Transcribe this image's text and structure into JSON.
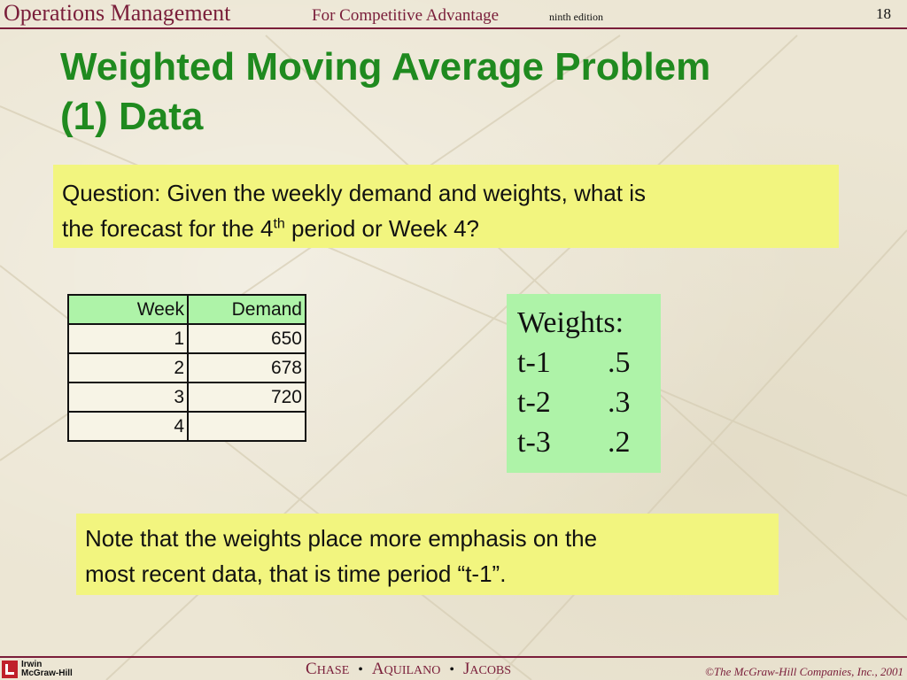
{
  "header": {
    "title": "Operations Management",
    "subtitle": "For Competitive Advantage",
    "edition": "ninth edition",
    "page_number": "18"
  },
  "slide": {
    "title_line1": "Weighted Moving Average Problem",
    "title_line2": "(1) Data"
  },
  "question": {
    "line1": "Question: Given the weekly demand and weights, what is",
    "line2_before": "the forecast for the 4",
    "line2_sup": "th",
    "line2_after": " period or Week 4?"
  },
  "demand_table": {
    "headers": [
      "Week",
      "Demand"
    ],
    "rows": [
      [
        "1",
        "650"
      ],
      [
        "2",
        "678"
      ],
      [
        "3",
        "720"
      ],
      [
        "4",
        ""
      ]
    ]
  },
  "weights": {
    "title": "Weights:",
    "items": [
      {
        "lag": "t-1",
        "weight": ".5"
      },
      {
        "lag": "t-2",
        "weight": ".3"
      },
      {
        "lag": "t-3",
        "weight": ".2"
      }
    ]
  },
  "note": {
    "line1": "Note that the weights place more emphasis on the",
    "line2": "most recent data, that is time period “t-1”."
  },
  "footer": {
    "logo_line1": "Irwin",
    "logo_line2": "McGraw-Hill",
    "authors": [
      {
        "initial": "C",
        "rest": "HASE"
      },
      {
        "initial": "A",
        "rest": "QUILANO"
      },
      {
        "initial": "J",
        "rest": "ACOBS"
      }
    ],
    "separator": "•",
    "copyright": "©The McGraw-Hill Companies, Inc., 2001"
  },
  "colors": {
    "title_green": "#1f8a1f",
    "header_maroon": "#7a1e3a",
    "highlight_yellow": "#f2f57f",
    "highlight_green": "#aef3a8"
  }
}
